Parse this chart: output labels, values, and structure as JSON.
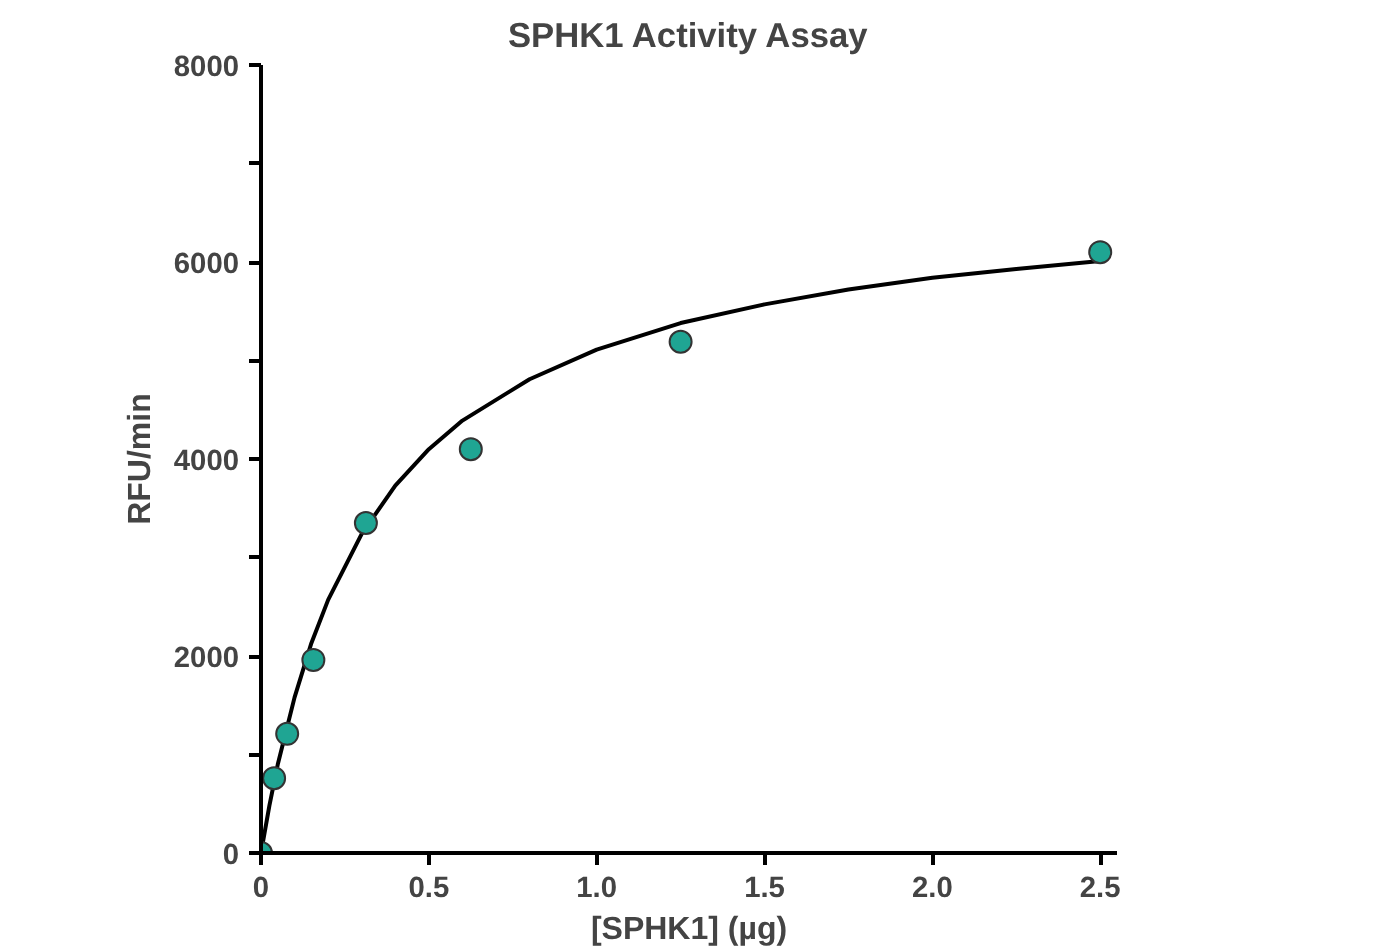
{
  "chart_data": {
    "type": "scatter",
    "title": "SPHK1 Activity Assay",
    "xlabel": "[SPHK1] (µg)",
    "ylabel": "RFU/min",
    "xlim": [
      0,
      2.55
    ],
    "ylim": [
      0,
      8000
    ],
    "xticks": [
      0,
      0.5,
      {
        "value": 1,
        "label": "1.0"
      },
      1.5,
      {
        "value": 2,
        "label": "2.0"
      },
      2.5
    ],
    "yticks": [
      0,
      {
        "value": 1000,
        "label": null
      },
      2000,
      {
        "value": 3000,
        "label": null
      },
      4000,
      {
        "value": 5000,
        "label": null
      },
      6000,
      {
        "value": 7000,
        "label": null
      },
      8000
    ],
    "grid": false,
    "series": [
      {
        "color": "#1fa593",
        "marker": "circle",
        "x": [
          0,
          0.039,
          0.078,
          0.156,
          0.3125,
          0.625,
          1.25,
          2.5
        ],
        "values": [
          0,
          760,
          1210,
          1960,
          3350,
          4100,
          5190,
          6100
        ]
      },
      {
        "type": "line",
        "color": "#000000",
        "line_style": "solid",
        "x": [
          0,
          0.025,
          0.05,
          0.1,
          0.15,
          0.2,
          0.3,
          0.4,
          0.5,
          0.6,
          0.8,
          1.0,
          1.25,
          1.5,
          1.75,
          2.0,
          2.25,
          2.5
        ],
        "values": [
          0,
          480,
          900,
          1580,
          2130,
          2570,
          3240,
          3730,
          4100,
          4390,
          4810,
          5110,
          5380,
          5570,
          5720,
          5840,
          5930,
          6010
        ]
      }
    ]
  }
}
